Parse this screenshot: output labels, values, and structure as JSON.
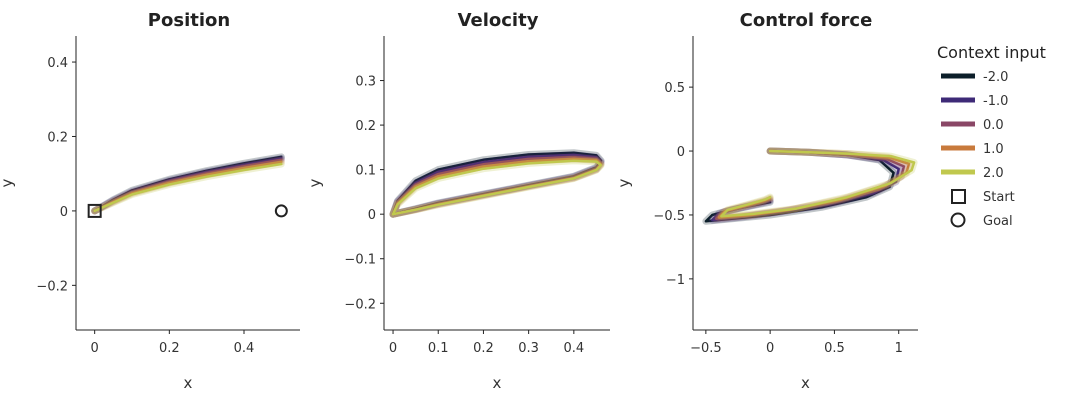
{
  "legend": {
    "title": "Context input",
    "entries": [
      {
        "label": "-2.0",
        "color": "#0c1f2a"
      },
      {
        "label": "-1.0",
        "color": "#3e2a77"
      },
      {
        "label": "0.0",
        "color": "#8a4766"
      },
      {
        "label": "1.0",
        "color": "#c87a3c"
      },
      {
        "label": "2.0",
        "color": "#c0c84e"
      }
    ],
    "markers": [
      {
        "label": "Start",
        "symbol": "square"
      },
      {
        "label": "Goal",
        "symbol": "circle"
      }
    ]
  },
  "chart_data": [
    {
      "type": "line",
      "title": "Position",
      "xlabel": "x",
      "ylabel": "y",
      "xlim": [
        -0.05,
        0.55
      ],
      "ylim": [
        -0.32,
        0.47
      ],
      "xticks": [
        {
          "v": 0,
          "t": "0"
        },
        {
          "v": 0.2,
          "t": "0.2"
        },
        {
          "v": 0.4,
          "t": "0.4"
        }
      ],
      "yticks": [
        {
          "v": -0.2,
          "t": "−0.2"
        },
        {
          "v": 0,
          "t": "0"
        },
        {
          "v": 0.2,
          "t": "0.2"
        },
        {
          "v": 0.4,
          "t": "0.4"
        }
      ],
      "series": [
        {
          "name": "-2.0",
          "x": [
            0,
            0.05,
            0.1,
            0.2,
            0.3,
            0.4,
            0.5
          ],
          "y": [
            0,
            0.03,
            0.055,
            0.085,
            0.108,
            0.128,
            0.145
          ]
        },
        {
          "name": "-1.0",
          "x": [
            0,
            0.05,
            0.1,
            0.2,
            0.3,
            0.4,
            0.5
          ],
          "y": [
            0,
            0.028,
            0.052,
            0.082,
            0.105,
            0.124,
            0.141
          ]
        },
        {
          "name": "0.0",
          "x": [
            0,
            0.05,
            0.1,
            0.2,
            0.3,
            0.4,
            0.5
          ],
          "y": [
            0,
            0.026,
            0.05,
            0.079,
            0.101,
            0.12,
            0.137
          ]
        },
        {
          "name": "1.0",
          "x": [
            0,
            0.05,
            0.1,
            0.2,
            0.3,
            0.4,
            0.5
          ],
          "y": [
            0,
            0.024,
            0.047,
            0.075,
            0.097,
            0.115,
            0.132
          ]
        },
        {
          "name": "2.0",
          "x": [
            0,
            0.05,
            0.1,
            0.2,
            0.3,
            0.4,
            0.5
          ],
          "y": [
            0,
            0.022,
            0.044,
            0.071,
            0.092,
            0.11,
            0.126
          ]
        }
      ],
      "start": {
        "x": 0,
        "y": 0
      },
      "goal": {
        "x": 0.5,
        "y": 0
      }
    },
    {
      "type": "line",
      "title": "Velocity",
      "xlabel": "x",
      "ylabel": "y",
      "xlim": [
        -0.02,
        0.48
      ],
      "ylim": [
        -0.26,
        0.4
      ],
      "xticks": [
        {
          "v": 0,
          "t": "0"
        },
        {
          "v": 0.1,
          "t": "0.1"
        },
        {
          "v": 0.2,
          "t": "0.2"
        },
        {
          "v": 0.3,
          "t": "0.3"
        },
        {
          "v": 0.4,
          "t": "0.4"
        }
      ],
      "yticks": [
        {
          "v": -0.2,
          "t": "−0.2"
        },
        {
          "v": -0.1,
          "t": "−0.1"
        },
        {
          "v": 0,
          "t": "0"
        },
        {
          "v": 0.1,
          "t": "0.1"
        },
        {
          "v": 0.2,
          "t": "0.2"
        },
        {
          "v": 0.3,
          "t": "0.3"
        }
      ],
      "series": [
        {
          "name": "-2.0",
          "x": [
            0,
            0.01,
            0.05,
            0.1,
            0.2,
            0.3,
            0.4,
            0.45,
            0.46,
            0.45,
            0.4,
            0.3,
            0.2,
            0.1,
            0.05,
            0
          ],
          "y": [
            0,
            0.03,
            0.075,
            0.1,
            0.122,
            0.134,
            0.138,
            0.132,
            0.12,
            0.105,
            0.085,
            0.065,
            0.045,
            0.025,
            0.012,
            0
          ]
        },
        {
          "name": "-1.0",
          "x": [
            0,
            0.01,
            0.05,
            0.1,
            0.2,
            0.3,
            0.4,
            0.45,
            0.46,
            0.45,
            0.4,
            0.3,
            0.2,
            0.1,
            0.05,
            0
          ],
          "y": [
            0,
            0.028,
            0.07,
            0.095,
            0.117,
            0.129,
            0.133,
            0.128,
            0.117,
            0.103,
            0.084,
            0.064,
            0.044,
            0.024,
            0.011,
            0
          ]
        },
        {
          "name": "0.0",
          "x": [
            0,
            0.01,
            0.05,
            0.1,
            0.2,
            0.3,
            0.4,
            0.45,
            0.46,
            0.45,
            0.4,
            0.3,
            0.2,
            0.1,
            0.05,
            0
          ],
          "y": [
            0,
            0.026,
            0.066,
            0.09,
            0.112,
            0.124,
            0.128,
            0.124,
            0.114,
            0.101,
            0.082,
            0.063,
            0.043,
            0.023,
            0.011,
            0
          ]
        },
        {
          "name": "1.0",
          "x": [
            0,
            0.01,
            0.05,
            0.1,
            0.2,
            0.3,
            0.4,
            0.45,
            0.46,
            0.45,
            0.4,
            0.3,
            0.2,
            0.1,
            0.05,
            0
          ],
          "y": [
            0,
            0.024,
            0.062,
            0.085,
            0.107,
            0.119,
            0.124,
            0.121,
            0.112,
            0.1,
            0.081,
            0.062,
            0.042,
            0.022,
            0.01,
            0
          ]
        },
        {
          "name": "2.0",
          "x": [
            0,
            0.01,
            0.05,
            0.1,
            0.2,
            0.3,
            0.4,
            0.45,
            0.46,
            0.45,
            0.4,
            0.3,
            0.2,
            0.1,
            0.05,
            0
          ],
          "y": [
            0,
            0.022,
            0.058,
            0.08,
            0.102,
            0.114,
            0.12,
            0.118,
            0.11,
            0.099,
            0.08,
            0.061,
            0.041,
            0.021,
            0.01,
            0
          ]
        }
      ]
    },
    {
      "type": "line",
      "title": "Control force",
      "xlabel": "x",
      "ylabel": "y",
      "xlim": [
        -0.6,
        1.15
      ],
      "ylim": [
        -1.4,
        0.9
      ],
      "xticks": [
        {
          "v": -0.5,
          "t": "−0.5"
        },
        {
          "v": 0,
          "t": "0"
        },
        {
          "v": 0.5,
          "t": "0.5"
        },
        {
          "v": 1,
          "t": "1"
        }
      ],
      "yticks": [
        {
          "v": -1,
          "t": "−1"
        },
        {
          "v": -0.5,
          "t": "−0.5"
        },
        {
          "v": 0,
          "t": "0"
        },
        {
          "v": 0.5,
          "t": "0.5"
        }
      ],
      "series": [
        {
          "name": "-2.0",
          "x": [
            0,
            0.3,
            0.6,
            0.85,
            0.96,
            0.93,
            0.75,
            0.4,
            0,
            -0.3,
            -0.5,
            -0.45,
            -0.3,
            -0.1,
            0
          ],
          "y": [
            0,
            -0.01,
            -0.03,
            -0.07,
            -0.17,
            -0.28,
            -0.36,
            -0.44,
            -0.5,
            -0.53,
            -0.55,
            -0.5,
            -0.46,
            -0.42,
            -0.4
          ]
        },
        {
          "name": "-1.0",
          "x": [
            0,
            0.3,
            0.6,
            0.88,
            1.0,
            0.98,
            0.8,
            0.45,
            0.05,
            -0.25,
            -0.45,
            -0.4,
            -0.25,
            -0.08,
            0
          ],
          "y": [
            0,
            -0.01,
            -0.03,
            -0.07,
            -0.14,
            -0.24,
            -0.33,
            -0.42,
            -0.48,
            -0.52,
            -0.54,
            -0.49,
            -0.45,
            -0.41,
            -0.39
          ]
        },
        {
          "name": "0.0",
          "x": [
            0,
            0.3,
            0.6,
            0.9,
            1.04,
            1.02,
            0.85,
            0.5,
            0.1,
            -0.2,
            -0.42,
            -0.37,
            -0.22,
            -0.06,
            0
          ],
          "y": [
            0,
            -0.01,
            -0.03,
            -0.06,
            -0.12,
            -0.2,
            -0.3,
            -0.4,
            -0.47,
            -0.51,
            -0.53,
            -0.48,
            -0.44,
            -0.4,
            -0.38
          ]
        },
        {
          "name": "1.0",
          "x": [
            0,
            0.3,
            0.6,
            0.92,
            1.08,
            1.06,
            0.9,
            0.55,
            0.15,
            -0.15,
            -0.4,
            -0.35,
            -0.2,
            -0.05,
            0
          ],
          "y": [
            0,
            -0.01,
            -0.02,
            -0.05,
            -0.1,
            -0.17,
            -0.27,
            -0.38,
            -0.46,
            -0.5,
            -0.52,
            -0.47,
            -0.43,
            -0.39,
            -0.37
          ]
        },
        {
          "name": "2.0",
          "x": [
            0,
            0.3,
            0.6,
            0.94,
            1.12,
            1.1,
            0.94,
            0.6,
            0.2,
            -0.12,
            -0.38,
            -0.33,
            -0.18,
            -0.04,
            0
          ],
          "y": [
            0,
            -0.01,
            -0.02,
            -0.04,
            -0.09,
            -0.15,
            -0.25,
            -0.36,
            -0.45,
            -0.49,
            -0.51,
            -0.46,
            -0.42,
            -0.38,
            -0.36
          ]
        }
      ]
    }
  ]
}
